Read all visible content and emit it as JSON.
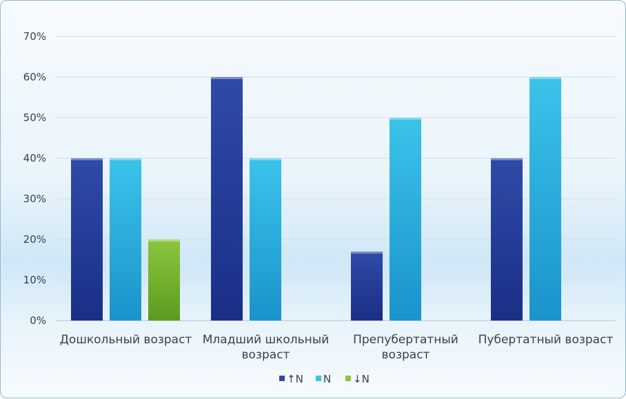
{
  "chart_data": {
    "type": "bar",
    "categories": [
      [
        "Дошкольный возраст"
      ],
      [
        "Младший школьный",
        "возраст"
      ],
      [
        "Препубертатный",
        "возраст"
      ],
      [
        "Пубертатный возраст"
      ]
    ],
    "series": [
      {
        "name": "↑N",
        "color": "#2f4aa8",
        "color_dark": "#1a2f86",
        "values": [
          40,
          60,
          17,
          40
        ]
      },
      {
        "name": "N",
        "color": "#3bc3ea",
        "color_dark": "#1a93cb",
        "values": [
          40,
          40,
          50,
          60
        ]
      },
      {
        "name": "↓N",
        "color": "#8cc63f",
        "color_dark": "#5a9b1e",
        "values": [
          20,
          null,
          null,
          null
        ]
      }
    ],
    "y_ticks": [
      "0%",
      "10%",
      "20%",
      "30%",
      "40%",
      "50%",
      "60%",
      "70%"
    ],
    "ylim": [
      0,
      70
    ],
    "y_unit": "%",
    "grid": true,
    "legend_position": "bottom"
  }
}
